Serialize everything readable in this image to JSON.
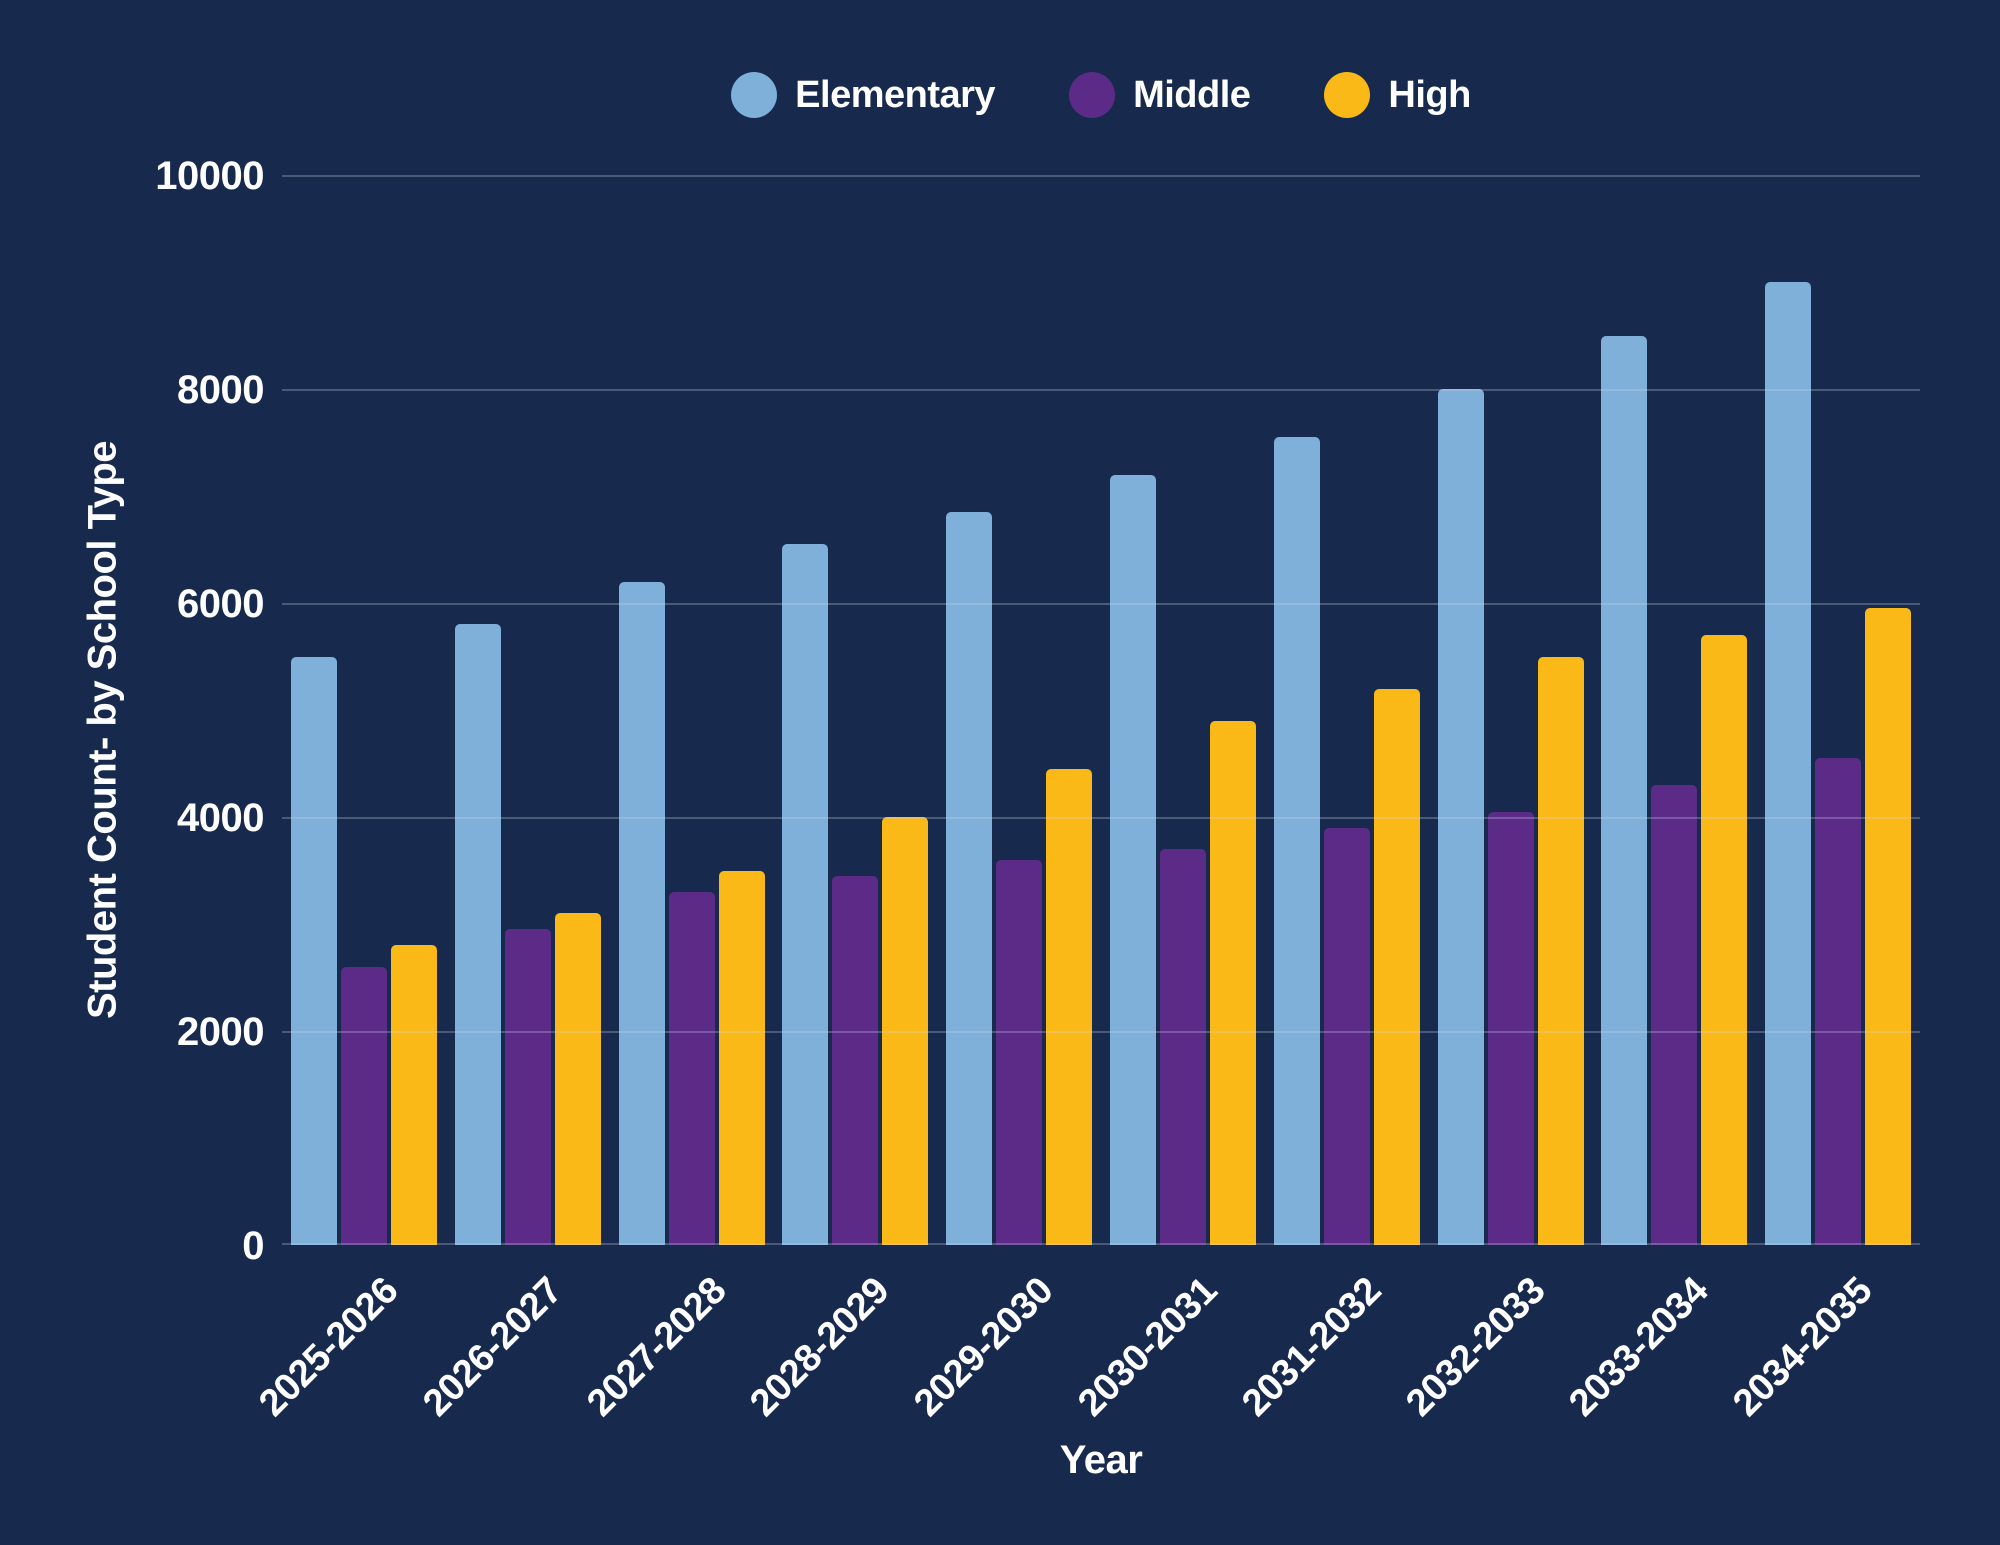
{
  "colors": {
    "background": "#172A4D",
    "grid": "rgba(203,213,235,0.28)",
    "text": "#FFFFFF",
    "elementary": "#7EB0D9",
    "middle": "#5B2B87",
    "high": "#FBB917"
  },
  "chart_data": {
    "type": "bar",
    "title": "",
    "categories": [
      "2025-2026",
      "2026-2027",
      "2027-2028",
      "2028-2029",
      "2029-2030",
      "2030-2031",
      "2031-2032",
      "2032-2033",
      "2033-2034",
      "2034-2035"
    ],
    "series": [
      {
        "name": "Elementary",
        "color": "#7EB0D9",
        "values": [
          5500,
          5800,
          6200,
          6550,
          6850,
          7200,
          7550,
          8000,
          8500,
          9000
        ]
      },
      {
        "name": "Middle",
        "color": "#5B2B87",
        "values": [
          2600,
          2950,
          3300,
          3450,
          3600,
          3700,
          3900,
          4050,
          4300,
          4550
        ]
      },
      {
        "name": "High",
        "color": "#FBB917",
        "values": [
          2800,
          3100,
          3500,
          4000,
          4450,
          4900,
          5200,
          5500,
          5700,
          5950
        ]
      }
    ],
    "xlabel": "Year",
    "ylabel": "Student Count- by School Type",
    "ylim": [
      0,
      10000
    ],
    "yticks": [
      0,
      2000,
      4000,
      6000,
      8000,
      10000
    ],
    "grid": true,
    "legend_position": "top"
  }
}
